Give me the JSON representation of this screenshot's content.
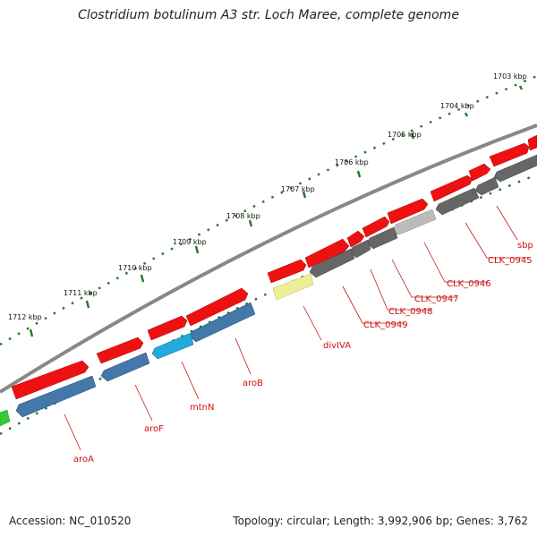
{
  "header": {
    "title": "Clostridium botulinum A3 str. Loch Maree, complete genome"
  },
  "footer": {
    "accession": "Accession: NC_010520",
    "summary": "Topology: circular; Length: 3,992,906 bp; Genes: 3,762"
  },
  "colors": {
    "forward_gene": "#ee1111",
    "reverse_gene": "#4477aa",
    "hypothetical": "#666666",
    "light_grey": "#bbbbbb",
    "cyan": "#22aadd",
    "yellow": "#eeee99",
    "green": "#33cc33",
    "tick": "#227722",
    "backbone": "#888888",
    "label": "#cc1111"
  },
  "scale_labels": [
    "1703 kbp",
    "1704 kbp",
    "1705 kbp",
    "1706 kbp",
    "1707 kbp",
    "1708 kbp",
    "1709 kbp",
    "1710 kbp",
    "1711 kbp",
    "1712 kbp"
  ],
  "gene_labels": [
    "sbp",
    "CLK_0945",
    "CLK_0946",
    "CLK_0947",
    "CLK_0948",
    "CLK_0949",
    "divIVA",
    "aroB",
    "mtnN",
    "aroF",
    "aroA"
  ]
}
